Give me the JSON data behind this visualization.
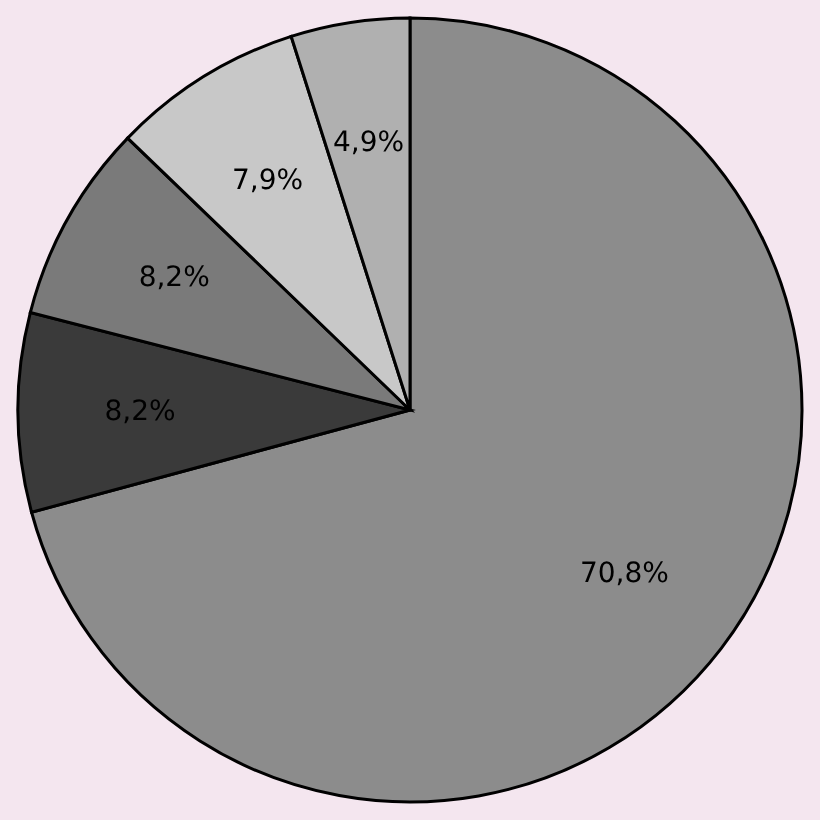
{
  "chart_data": {
    "type": "pie",
    "categories": [
      null,
      null,
      null,
      null,
      null
    ],
    "values": [
      70.8,
      8.2,
      8.2,
      7.9,
      4.9
    ],
    "colors": [
      "#8c8c8c",
      "#3a3a3a",
      "#7a7a7a",
      "#c8c8c8",
      "#b0b0b0"
    ],
    "value_labels": [
      "70,8%",
      "8,2%",
      "8,2%",
      "7,9%",
      "4,9%"
    ]
  }
}
